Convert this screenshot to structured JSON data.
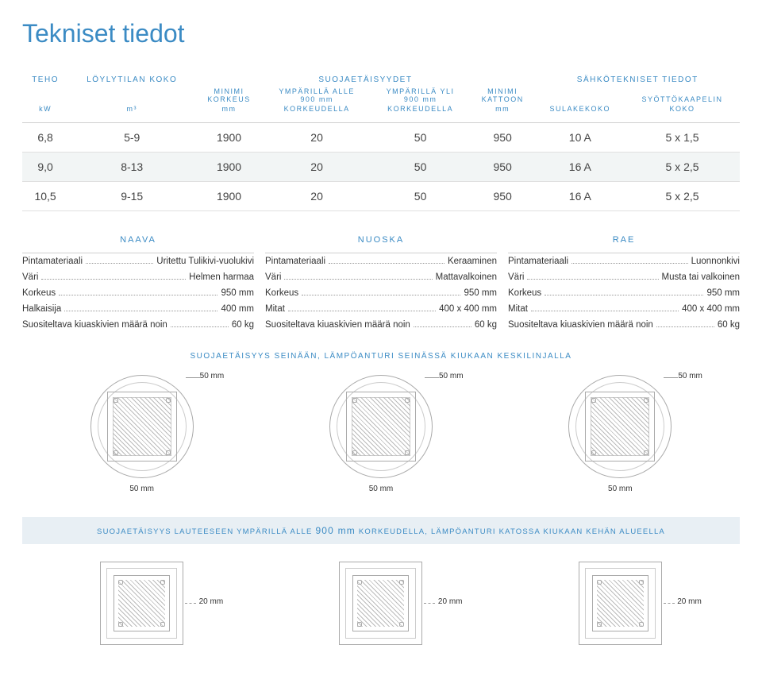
{
  "title": "Tekniset tiedot",
  "table": {
    "group_headers": [
      "TEHO",
      "LÖYLYTILAN KOKO",
      "SUOJAETÄISYYDET",
      "SÄHKÖTEKNISET TIEDOT"
    ],
    "cols": [
      {
        "h": "kW",
        "sub": ""
      },
      {
        "h": "m³",
        "sub": ""
      },
      {
        "h": "MINIMI\nKORKEUS",
        "sub": "mm"
      },
      {
        "h": "YMPÄRILLÄ ALLE\n900 mm",
        "sub": "KORKEUDELLA"
      },
      {
        "h": "YMPÄRILLÄ YLI\n900 mm",
        "sub": "KORKEUDELLA"
      },
      {
        "h": "MINIMI\nKATTOON",
        "sub": "mm"
      },
      {
        "h": "SULAKEKOKO",
        "sub": ""
      },
      {
        "h": "SYÖTTÖKAAPELIN",
        "sub": "KOKO"
      }
    ],
    "rows": [
      [
        "6,8",
        "5-9",
        "1900",
        "20",
        "50",
        "950",
        "10 A",
        "5 x 1,5"
      ],
      [
        "9,0",
        "8-13",
        "1900",
        "20",
        "50",
        "950",
        "16 A",
        "5 x 2,5"
      ],
      [
        "10,5",
        "9-15",
        "1900",
        "20",
        "50",
        "950",
        "16 A",
        "5 x 2,5"
      ]
    ]
  },
  "specs": [
    {
      "name": "NAAVA",
      "rows": [
        {
          "k": "Pintamateriaali",
          "v": "Uritettu Tulikivi-vuolukivi"
        },
        {
          "k": "Väri",
          "v": "Helmen harmaa"
        },
        {
          "k": "Korkeus",
          "v": "950 mm"
        },
        {
          "k": "Halkaisija",
          "v": "400 mm"
        },
        {
          "k": "Suositeltava kiuaskivien määrä noin",
          "v": "60 kg"
        }
      ]
    },
    {
      "name": "NUOSKA",
      "rows": [
        {
          "k": "Pintamateriaali",
          "v": "Keraaminen"
        },
        {
          "k": "Väri",
          "v": "Mattavalkoinen"
        },
        {
          "k": "Korkeus",
          "v": "950 mm"
        },
        {
          "k": "Mitat",
          "v": "400 x 400 mm"
        },
        {
          "k": "Suositeltava kiuaskivien määrä noin",
          "v": "60 kg"
        }
      ]
    },
    {
      "name": "RAE",
      "rows": [
        {
          "k": "Pintamateriaali",
          "v": "Luonnonkivi"
        },
        {
          "k": "Väri",
          "v": "Musta tai valkoinen"
        },
        {
          "k": "Korkeus",
          "v": "950 mm"
        },
        {
          "k": "Mitat",
          "v": "400 x 400 mm"
        },
        {
          "k": "Suositeltava kiuaskivien määrä noin",
          "v": "60 kg"
        }
      ]
    }
  ],
  "safety1": "SUOJAETÄISYYS SEINÄÄN, LÄMPÖANTURI SEINÄSSÄ KIUKAAN KESKILINJALLA",
  "diag_label_top": "50 mm",
  "diag_label_bot": "50 mm",
  "band_text_pre": "SUOJAETÄISYYS LAUTEESEEN YMPÄRILLÄ ALLE",
  "band_mm": "900 mm",
  "band_text_post": "KORKEUDELLA, LÄMPÖANTURI KATOSSA KIUKAAN KEHÄN ALUEELLA",
  "sq_label": "20 mm"
}
